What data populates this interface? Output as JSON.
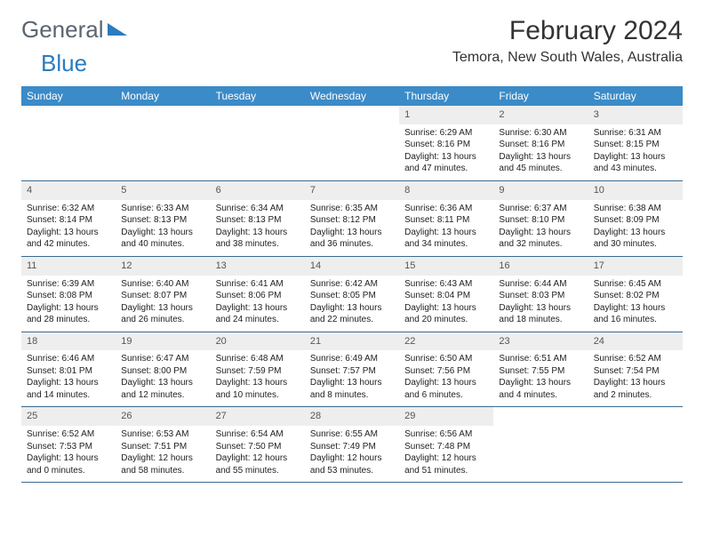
{
  "logo": {
    "word1": "General",
    "word2": "Blue"
  },
  "header": {
    "month_title": "February 2024",
    "location": "Temora, New South Wales, Australia"
  },
  "colors": {
    "header_bg": "#3b8bc8",
    "header_text": "#ffffff",
    "daynum_bg": "#eeeeee",
    "rule": "#3b6a90",
    "logo_gray": "#5a6570",
    "logo_blue": "#2b7bbf"
  },
  "day_names": [
    "Sunday",
    "Monday",
    "Tuesday",
    "Wednesday",
    "Thursday",
    "Friday",
    "Saturday"
  ],
  "weeks": [
    [
      {
        "n": "",
        "sr": "",
        "ss": "",
        "dl": ""
      },
      {
        "n": "",
        "sr": "",
        "ss": "",
        "dl": ""
      },
      {
        "n": "",
        "sr": "",
        "ss": "",
        "dl": ""
      },
      {
        "n": "",
        "sr": "",
        "ss": "",
        "dl": ""
      },
      {
        "n": "1",
        "sr": "Sunrise: 6:29 AM",
        "ss": "Sunset: 8:16 PM",
        "dl": "Daylight: 13 hours and 47 minutes."
      },
      {
        "n": "2",
        "sr": "Sunrise: 6:30 AM",
        "ss": "Sunset: 8:16 PM",
        "dl": "Daylight: 13 hours and 45 minutes."
      },
      {
        "n": "3",
        "sr": "Sunrise: 6:31 AM",
        "ss": "Sunset: 8:15 PM",
        "dl": "Daylight: 13 hours and 43 minutes."
      }
    ],
    [
      {
        "n": "4",
        "sr": "Sunrise: 6:32 AM",
        "ss": "Sunset: 8:14 PM",
        "dl": "Daylight: 13 hours and 42 minutes."
      },
      {
        "n": "5",
        "sr": "Sunrise: 6:33 AM",
        "ss": "Sunset: 8:13 PM",
        "dl": "Daylight: 13 hours and 40 minutes."
      },
      {
        "n": "6",
        "sr": "Sunrise: 6:34 AM",
        "ss": "Sunset: 8:13 PM",
        "dl": "Daylight: 13 hours and 38 minutes."
      },
      {
        "n": "7",
        "sr": "Sunrise: 6:35 AM",
        "ss": "Sunset: 8:12 PM",
        "dl": "Daylight: 13 hours and 36 minutes."
      },
      {
        "n": "8",
        "sr": "Sunrise: 6:36 AM",
        "ss": "Sunset: 8:11 PM",
        "dl": "Daylight: 13 hours and 34 minutes."
      },
      {
        "n": "9",
        "sr": "Sunrise: 6:37 AM",
        "ss": "Sunset: 8:10 PM",
        "dl": "Daylight: 13 hours and 32 minutes."
      },
      {
        "n": "10",
        "sr": "Sunrise: 6:38 AM",
        "ss": "Sunset: 8:09 PM",
        "dl": "Daylight: 13 hours and 30 minutes."
      }
    ],
    [
      {
        "n": "11",
        "sr": "Sunrise: 6:39 AM",
        "ss": "Sunset: 8:08 PM",
        "dl": "Daylight: 13 hours and 28 minutes."
      },
      {
        "n": "12",
        "sr": "Sunrise: 6:40 AM",
        "ss": "Sunset: 8:07 PM",
        "dl": "Daylight: 13 hours and 26 minutes."
      },
      {
        "n": "13",
        "sr": "Sunrise: 6:41 AM",
        "ss": "Sunset: 8:06 PM",
        "dl": "Daylight: 13 hours and 24 minutes."
      },
      {
        "n": "14",
        "sr": "Sunrise: 6:42 AM",
        "ss": "Sunset: 8:05 PM",
        "dl": "Daylight: 13 hours and 22 minutes."
      },
      {
        "n": "15",
        "sr": "Sunrise: 6:43 AM",
        "ss": "Sunset: 8:04 PM",
        "dl": "Daylight: 13 hours and 20 minutes."
      },
      {
        "n": "16",
        "sr": "Sunrise: 6:44 AM",
        "ss": "Sunset: 8:03 PM",
        "dl": "Daylight: 13 hours and 18 minutes."
      },
      {
        "n": "17",
        "sr": "Sunrise: 6:45 AM",
        "ss": "Sunset: 8:02 PM",
        "dl": "Daylight: 13 hours and 16 minutes."
      }
    ],
    [
      {
        "n": "18",
        "sr": "Sunrise: 6:46 AM",
        "ss": "Sunset: 8:01 PM",
        "dl": "Daylight: 13 hours and 14 minutes."
      },
      {
        "n": "19",
        "sr": "Sunrise: 6:47 AM",
        "ss": "Sunset: 8:00 PM",
        "dl": "Daylight: 13 hours and 12 minutes."
      },
      {
        "n": "20",
        "sr": "Sunrise: 6:48 AM",
        "ss": "Sunset: 7:59 PM",
        "dl": "Daylight: 13 hours and 10 minutes."
      },
      {
        "n": "21",
        "sr": "Sunrise: 6:49 AM",
        "ss": "Sunset: 7:57 PM",
        "dl": "Daylight: 13 hours and 8 minutes."
      },
      {
        "n": "22",
        "sr": "Sunrise: 6:50 AM",
        "ss": "Sunset: 7:56 PM",
        "dl": "Daylight: 13 hours and 6 minutes."
      },
      {
        "n": "23",
        "sr": "Sunrise: 6:51 AM",
        "ss": "Sunset: 7:55 PM",
        "dl": "Daylight: 13 hours and 4 minutes."
      },
      {
        "n": "24",
        "sr": "Sunrise: 6:52 AM",
        "ss": "Sunset: 7:54 PM",
        "dl": "Daylight: 13 hours and 2 minutes."
      }
    ],
    [
      {
        "n": "25",
        "sr": "Sunrise: 6:52 AM",
        "ss": "Sunset: 7:53 PM",
        "dl": "Daylight: 13 hours and 0 minutes."
      },
      {
        "n": "26",
        "sr": "Sunrise: 6:53 AM",
        "ss": "Sunset: 7:51 PM",
        "dl": "Daylight: 12 hours and 58 minutes."
      },
      {
        "n": "27",
        "sr": "Sunrise: 6:54 AM",
        "ss": "Sunset: 7:50 PM",
        "dl": "Daylight: 12 hours and 55 minutes."
      },
      {
        "n": "28",
        "sr": "Sunrise: 6:55 AM",
        "ss": "Sunset: 7:49 PM",
        "dl": "Daylight: 12 hours and 53 minutes."
      },
      {
        "n": "29",
        "sr": "Sunrise: 6:56 AM",
        "ss": "Sunset: 7:48 PM",
        "dl": "Daylight: 12 hours and 51 minutes."
      },
      {
        "n": "",
        "sr": "",
        "ss": "",
        "dl": ""
      },
      {
        "n": "",
        "sr": "",
        "ss": "",
        "dl": ""
      }
    ]
  ]
}
